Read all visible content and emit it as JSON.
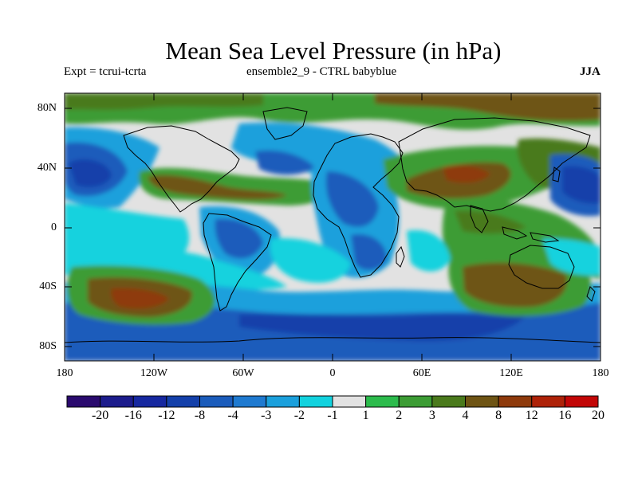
{
  "title": "Mean Sea Level Pressure (in hPa)",
  "subtitle_left": "Expt = tcrui-tcrta",
  "subtitle_center": "ensemble2_9 - CTRL babyblue",
  "subtitle_right": "JJA",
  "lat_labels": [
    "80N",
    "40N",
    "0",
    "40S",
    "80S"
  ],
  "lon_labels": [
    "180",
    "120W",
    "60W",
    "0",
    "60E",
    "120E",
    "180"
  ],
  "colorbar": {
    "labels": [
      "-20",
      "-16",
      "-12",
      "-8",
      "-4",
      "-3",
      "-2",
      "-1",
      "1",
      "2",
      "3",
      "4",
      "8",
      "12",
      "16",
      "20"
    ],
    "colors": [
      "#2a0a6e",
      "#1c1c8c",
      "#1628a0",
      "#1440aa",
      "#1b5cbb",
      "#1f7ad0",
      "#1ba0dc",
      "#12d2de",
      "#e2e2e2",
      "#2cbb4c",
      "#3c9c34",
      "#4a7a1c",
      "#6e5414",
      "#8e3a0c",
      "#ae2208",
      "#c20606"
    ]
  },
  "regions": {
    "background": "#e2e2e2",
    "land_line": "#000000"
  }
}
